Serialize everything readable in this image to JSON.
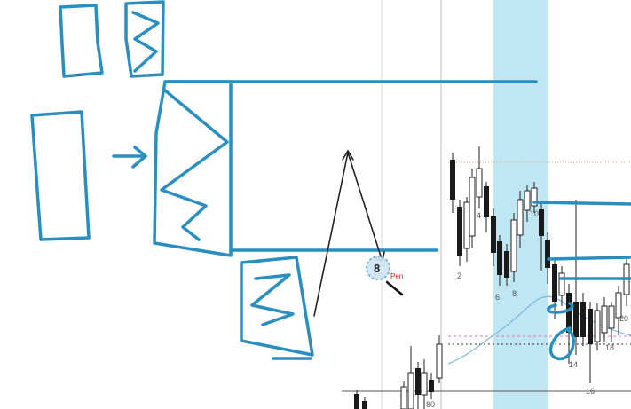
{
  "colors": {
    "background": "#ffffff",
    "drawing_blue": "#2a8fc0",
    "highlight_band": "#bfe6f2",
    "candle_bull": "#ffffff",
    "candle_bear": "#1a1a1a",
    "moving_average": "#7fb6e0",
    "dashed_pink": "#e070c8",
    "grid": "#d8d8d8",
    "cursor_label": "#e02020"
  },
  "chart": {
    "bar_labels": [
      "2",
      "4",
      "6",
      "8",
      "10",
      "14",
      "16",
      "18",
      "20",
      "80"
    ],
    "cursor": {
      "number": "8",
      "label": "Pen"
    }
  },
  "icons": {
    "cursor": "pen-cursor-icon"
  }
}
